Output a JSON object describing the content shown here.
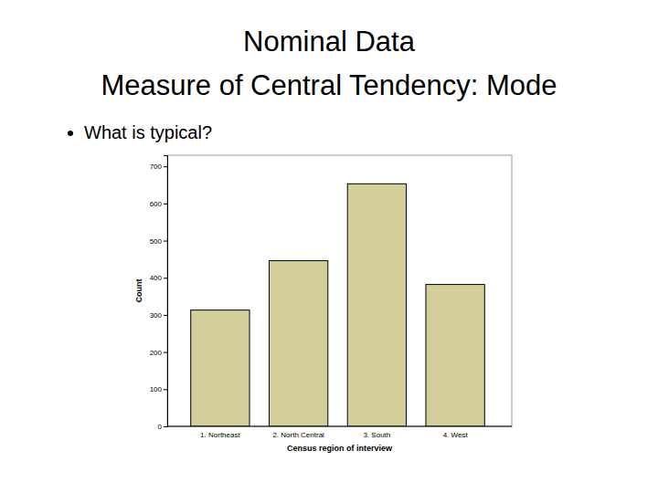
{
  "chart_data": {
    "type": "bar",
    "title": "Nominal Data",
    "subtitle": "Measure of Central Tendency: Mode",
    "annotations": [
      "What is typical?"
    ],
    "categories": [
      "1. Northeast",
      "2. North Central",
      "3. South",
      "4. West"
    ],
    "values": [
      313,
      446,
      653,
      382
    ],
    "color": "#d4cf9a",
    "xlabel": "Census region of interview",
    "ylabel": "Count",
    "ylim": [
      0,
      730
    ],
    "yticks": [
      0,
      100,
      200,
      300,
      400,
      500,
      600,
      700
    ],
    "grid": false
  }
}
